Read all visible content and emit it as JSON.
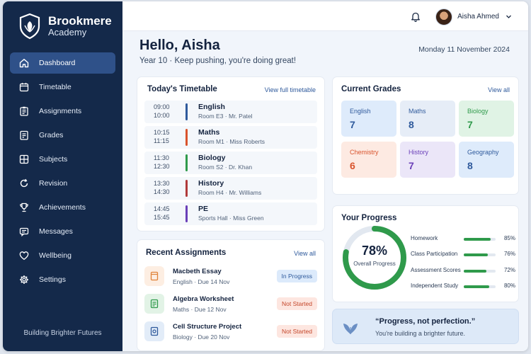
{
  "brand": {
    "name_line1": "Brookmere",
    "name_line2": "Academy"
  },
  "sidebar": {
    "items": [
      {
        "label": "Dashboard",
        "icon": "home-icon"
      },
      {
        "label": "Timetable",
        "icon": "calendar-icon"
      },
      {
        "label": "Assignments",
        "icon": "clipboard-icon"
      },
      {
        "label": "Grades",
        "icon": "grades-icon"
      },
      {
        "label": "Subjects",
        "icon": "subjects-icon"
      },
      {
        "label": "Revision",
        "icon": "refresh-icon"
      },
      {
        "label": "Achievements",
        "icon": "trophy-icon"
      },
      {
        "label": "Messages",
        "icon": "message-icon"
      },
      {
        "label": "Wellbeing",
        "icon": "heart-icon"
      },
      {
        "label": "Settings",
        "icon": "gear-icon"
      }
    ],
    "active_index": 0,
    "footer": "Building Brighter Futures"
  },
  "topbar": {
    "user_name": "Aisha Ahmed"
  },
  "header": {
    "greeting": "Hello, Aisha",
    "subtitle": "Year 10 · Keep pushing, you're doing great!",
    "date": "Monday 11 November 2024"
  },
  "timetable": {
    "title": "Today's Timetable",
    "link": "View full timetable",
    "rows": [
      {
        "start": "09:00",
        "end": "10:00",
        "subject": "English",
        "room": "Room E3 · Mr. Patel",
        "color": "#2f5a9c"
      },
      {
        "start": "10:15",
        "end": "11:15",
        "subject": "Maths",
        "room": "Room M1 · Miss Roberts",
        "color": "#d9532c"
      },
      {
        "start": "11:30",
        "end": "12:30",
        "subject": "Biology",
        "room": "Room S2 · Dr. Khan",
        "color": "#2f9a4b"
      },
      {
        "start": "13:30",
        "end": "14:30",
        "subject": "History",
        "room": "Room H4 · Mr. Williams",
        "color": "#b03a3a"
      },
      {
        "start": "14:45",
        "end": "15:45",
        "subject": "PE",
        "room": "Sports Hall · Miss Green",
        "color": "#6a3fb8"
      }
    ]
  },
  "assignments": {
    "title": "Recent Assignments",
    "link": "View all",
    "rows": [
      {
        "title": "Macbeth Essay",
        "meta": "English · Due 14 Nov",
        "status": "In Progress",
        "icon": "book-icon"
      },
      {
        "title": "Algebra Worksheet",
        "meta": "Maths · Due 12 Nov",
        "status": "Not Started",
        "icon": "worksheet-icon"
      },
      {
        "title": "Cell Structure Project",
        "meta": "Biology · Due 20 Nov",
        "status": "Not Started",
        "icon": "project-icon"
      }
    ]
  },
  "grades": {
    "title": "Current Grades",
    "link": "View all",
    "items": [
      {
        "subject": "English",
        "grade": "7",
        "bg": "#deebfb",
        "fg": "#2f5a9c"
      },
      {
        "subject": "Maths",
        "grade": "8",
        "bg": "#e6edf7",
        "fg": "#2f5a9c"
      },
      {
        "subject": "Biology",
        "grade": "7",
        "bg": "#e0f3e5",
        "fg": "#2f9a4b"
      },
      {
        "subject": "Chemistry",
        "grade": "6",
        "bg": "#fdeae2",
        "fg": "#d9532c"
      },
      {
        "subject": "History",
        "grade": "7",
        "bg": "#ebe6f8",
        "fg": "#6a3fb8"
      },
      {
        "subject": "Geography",
        "grade": "8",
        "bg": "#deebfb",
        "fg": "#2f5a9c"
      }
    ]
  },
  "progress": {
    "title": "Your Progress",
    "overall_value": 78,
    "overall_text": "78%",
    "overall_label": "Overall Progress",
    "rows": [
      {
        "label": "Homework",
        "value": 85,
        "text": "85%"
      },
      {
        "label": "Class Participation",
        "value": 76,
        "text": "76%"
      },
      {
        "label": "Assessment Scores",
        "value": 72,
        "text": "72%"
      },
      {
        "label": "Independent Study",
        "value": 80,
        "text": "80%"
      }
    ]
  },
  "quote": {
    "text": "“Progress, not perfection.”",
    "subtext": "You're building a brighter future.",
    "icon": "leaf-icon"
  }
}
